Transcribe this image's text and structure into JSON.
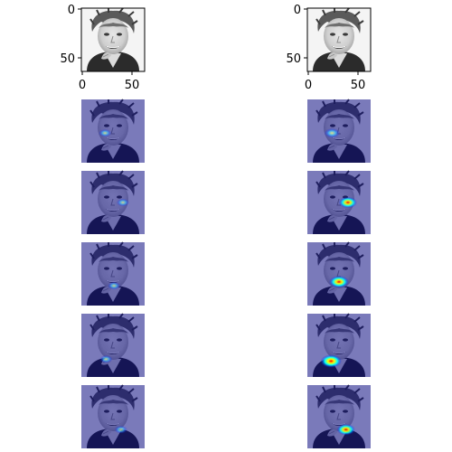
{
  "chart_data": {
    "type": "image-grid",
    "layout": {
      "rows": 6,
      "cols": 2
    },
    "axes": {
      "xticks": [
        0,
        50
      ],
      "yticks": [
        0,
        50
      ],
      "xlim": [
        0,
        64
      ],
      "ylim": [
        64,
        0
      ]
    },
    "panels": [
      {
        "row": 0,
        "col": 0,
        "kind": "face",
        "axes_visible": true
      },
      {
        "row": 0,
        "col": 1,
        "kind": "face",
        "axes_visible": true
      },
      {
        "row": 1,
        "col": 0,
        "kind": "heatmap-overlay",
        "hotspot": [
          24,
          34
        ],
        "intensity": 0.4
      },
      {
        "row": 1,
        "col": 1,
        "kind": "heatmap-overlay",
        "hotspot": [
          25,
          34
        ],
        "intensity": 0.6
      },
      {
        "row": 2,
        "col": 0,
        "kind": "heatmap-overlay",
        "hotspot": [
          42,
          32
        ],
        "intensity": 0.4
      },
      {
        "row": 2,
        "col": 1,
        "kind": "heatmap-overlay",
        "hotspot": [
          41,
          32
        ],
        "intensity": 0.8
      },
      {
        "row": 3,
        "col": 0,
        "kind": "heatmap-overlay",
        "hotspot": [
          33,
          44
        ],
        "intensity": 0.4
      },
      {
        "row": 3,
        "col": 1,
        "kind": "heatmap-overlay",
        "hotspot": [
          32,
          40
        ],
        "intensity": 0.9
      },
      {
        "row": 4,
        "col": 0,
        "kind": "heatmap-overlay",
        "hotspot": [
          25,
          46
        ],
        "intensity": 0.4
      },
      {
        "row": 4,
        "col": 1,
        "kind": "heatmap-overlay",
        "hotspot": [
          24,
          48
        ],
        "intensity": 1.0
      },
      {
        "row": 5,
        "col": 0,
        "kind": "heatmap-overlay",
        "hotspot": [
          40,
          45
        ],
        "intensity": 0.4
      },
      {
        "row": 5,
        "col": 1,
        "kind": "heatmap-overlay",
        "hotspot": [
          39,
          45
        ],
        "intensity": 0.8
      }
    ],
    "grid": false,
    "colors": {
      "overlay": "#00007f",
      "hot": "#ff0000",
      "warm": "#ffff00",
      "cool": "#00ffff"
    }
  }
}
